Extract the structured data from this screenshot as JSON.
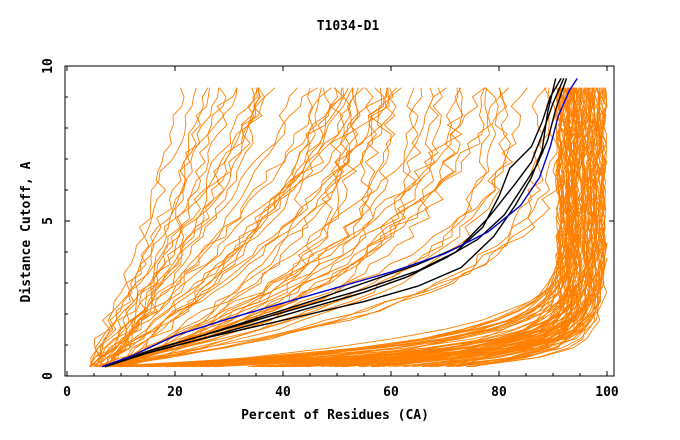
{
  "chart_data": {
    "type": "line",
    "title": "T1034-D1",
    "xlabel": "Percent of Residues (CA)",
    "ylabel": "Distance Cutoff, A",
    "xlim": [
      0,
      100
    ],
    "ylim": [
      0,
      10
    ],
    "x_ticks": [
      0,
      20,
      40,
      60,
      80,
      100
    ],
    "y_ticks": [
      0,
      5,
      10
    ],
    "grid": false,
    "colors": {
      "background_models": "#ff8000",
      "highlight_black": "#000000",
      "highlight_blue": "#0000cc",
      "axes": "#000000"
    },
    "background_series_count": 150,
    "highlighted_series": [
      {
        "name": "black-1",
        "color": "#000000",
        "points": [
          [
            7,
            0.3
          ],
          [
            15,
            0.75
          ],
          [
            25,
            1.2
          ],
          [
            35,
            1.6
          ],
          [
            45,
            2.0
          ],
          [
            55,
            2.4
          ],
          [
            65,
            2.9
          ],
          [
            73,
            3.5
          ],
          [
            79,
            4.5
          ],
          [
            83,
            5.5
          ],
          [
            86,
            6.4
          ],
          [
            88,
            7.3
          ],
          [
            89,
            8.5
          ],
          [
            90.5,
            9.6
          ]
        ]
      },
      {
        "name": "black-2",
        "color": "#000000",
        "points": [
          [
            7,
            0.3
          ],
          [
            15,
            0.8
          ],
          [
            25,
            1.3
          ],
          [
            35,
            1.8
          ],
          [
            45,
            2.3
          ],
          [
            55,
            2.8
          ],
          [
            65,
            3.4
          ],
          [
            72,
            4.0
          ],
          [
            77,
            4.8
          ],
          [
            80,
            5.8
          ],
          [
            82,
            6.7
          ],
          [
            86,
            7.4
          ],
          [
            88,
            8.2
          ],
          [
            89.5,
            9.0
          ],
          [
            91.5,
            9.6
          ]
        ]
      },
      {
        "name": "black-3",
        "color": "#000000",
        "points": [
          [
            7,
            0.3
          ],
          [
            15,
            0.8
          ],
          [
            25,
            1.3
          ],
          [
            35,
            1.85
          ],
          [
            45,
            2.4
          ],
          [
            55,
            3.0
          ],
          [
            65,
            3.6
          ],
          [
            73,
            4.2
          ],
          [
            78,
            5.1
          ],
          [
            83,
            6.2
          ],
          [
            86,
            6.9
          ],
          [
            88,
            7.8
          ],
          [
            90,
            8.8
          ],
          [
            92,
            9.6
          ]
        ]
      },
      {
        "name": "black-4",
        "color": "#000000",
        "points": [
          [
            7,
            0.3
          ],
          [
            15,
            0.75
          ],
          [
            25,
            1.2
          ],
          [
            35,
            1.7
          ],
          [
            45,
            2.2
          ],
          [
            55,
            2.7
          ],
          [
            63,
            3.2
          ],
          [
            70,
            3.8
          ],
          [
            76,
            4.4
          ],
          [
            81,
            5.2
          ],
          [
            84,
            6.0
          ],
          [
            87,
            6.8
          ],
          [
            89,
            7.6
          ],
          [
            90.5,
            8.6
          ],
          [
            92.5,
            9.6
          ]
        ]
      },
      {
        "name": "blue-1",
        "color": "#0000cc",
        "points": [
          [
            6.5,
            0.3
          ],
          [
            12,
            0.65
          ],
          [
            20,
            1.3
          ],
          [
            30,
            1.85
          ],
          [
            40,
            2.35
          ],
          [
            50,
            2.85
          ],
          [
            60,
            3.35
          ],
          [
            70,
            3.95
          ],
          [
            78,
            4.65
          ],
          [
            84,
            5.5
          ],
          [
            87.5,
            6.4
          ],
          [
            89.5,
            7.4
          ],
          [
            91,
            8.4
          ],
          [
            93,
            9.2
          ],
          [
            94.5,
            9.6
          ]
        ]
      }
    ]
  }
}
